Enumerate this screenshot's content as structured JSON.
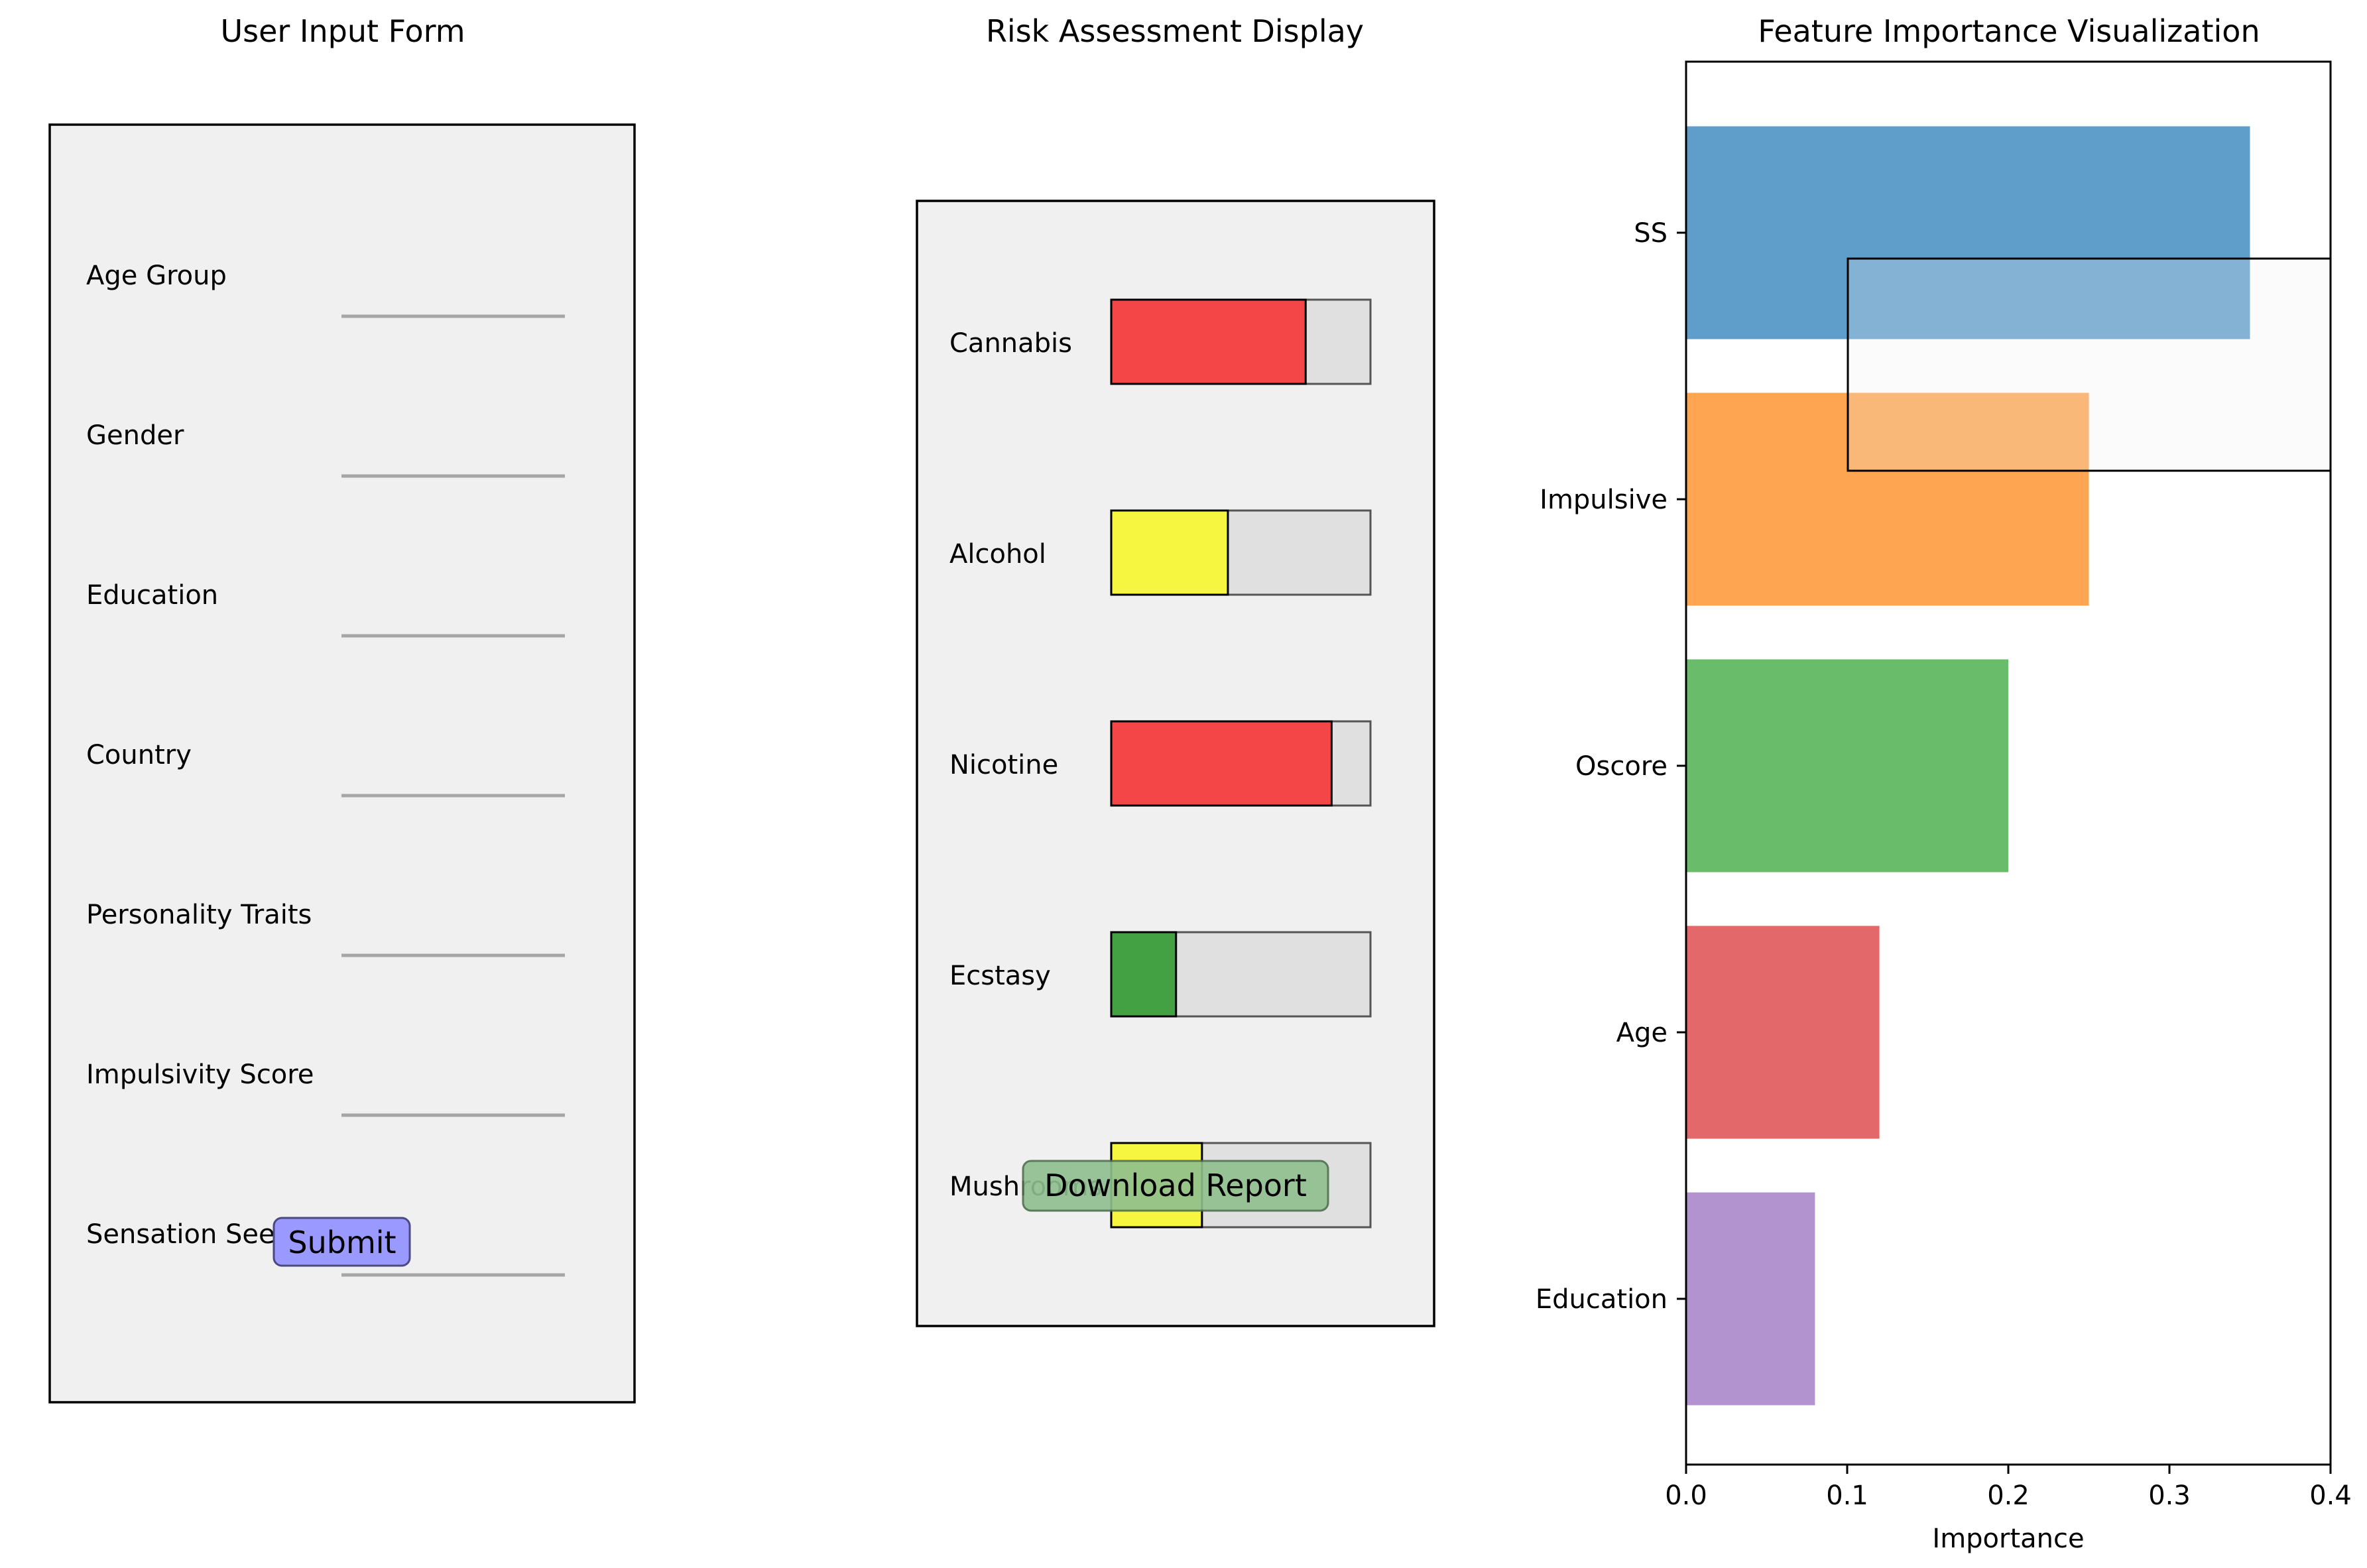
{
  "form_panel": {
    "title": "User Input Form",
    "fields": [
      "Age Group",
      "Gender",
      "Education",
      "Country",
      "Personality Traits",
      "Impulsivity Score",
      "Sensation Seeking"
    ],
    "submit_label": "Submit",
    "background_color": "#f0f0f0",
    "submit_color": "#9999ff"
  },
  "risk_panel": {
    "title": "Risk Assessment Display",
    "items": [
      {
        "label": "Cannabis",
        "risk": 0.75,
        "color": "#f44646"
      },
      {
        "label": "Alcohol",
        "risk": 0.45,
        "color": "#f6f640"
      },
      {
        "label": "Nicotine",
        "risk": 0.85,
        "color": "#f44646"
      },
      {
        "label": "Ecstasy",
        "risk": 0.25,
        "color": "#43a043"
      },
      {
        "label": "Mushrooms",
        "risk": 0.35,
        "color": "#f6f640"
      }
    ],
    "download_label": "Download Report",
    "download_color": "#8fbf8f",
    "track_color": "#e0e0e0",
    "background_color": "#f0f0f0"
  },
  "chart_data": {
    "type": "bar",
    "orientation": "horizontal",
    "title": "Feature Importance Visualization",
    "categories": [
      "SS",
      "Impulsive",
      "Oscore",
      "Age",
      "Education"
    ],
    "values": [
      0.35,
      0.25,
      0.2,
      0.12,
      0.08
    ],
    "colors": [
      "#5f9ecb",
      "#fda551",
      "#69bd6a",
      "#e2686a",
      "#b293d0"
    ],
    "xlabel": "Importance",
    "ylabel": "",
    "xlim": [
      0,
      0.4
    ],
    "xticks": [
      "0.0",
      "0.1",
      "0.2",
      "0.3",
      "0.4"
    ],
    "grid": false
  }
}
